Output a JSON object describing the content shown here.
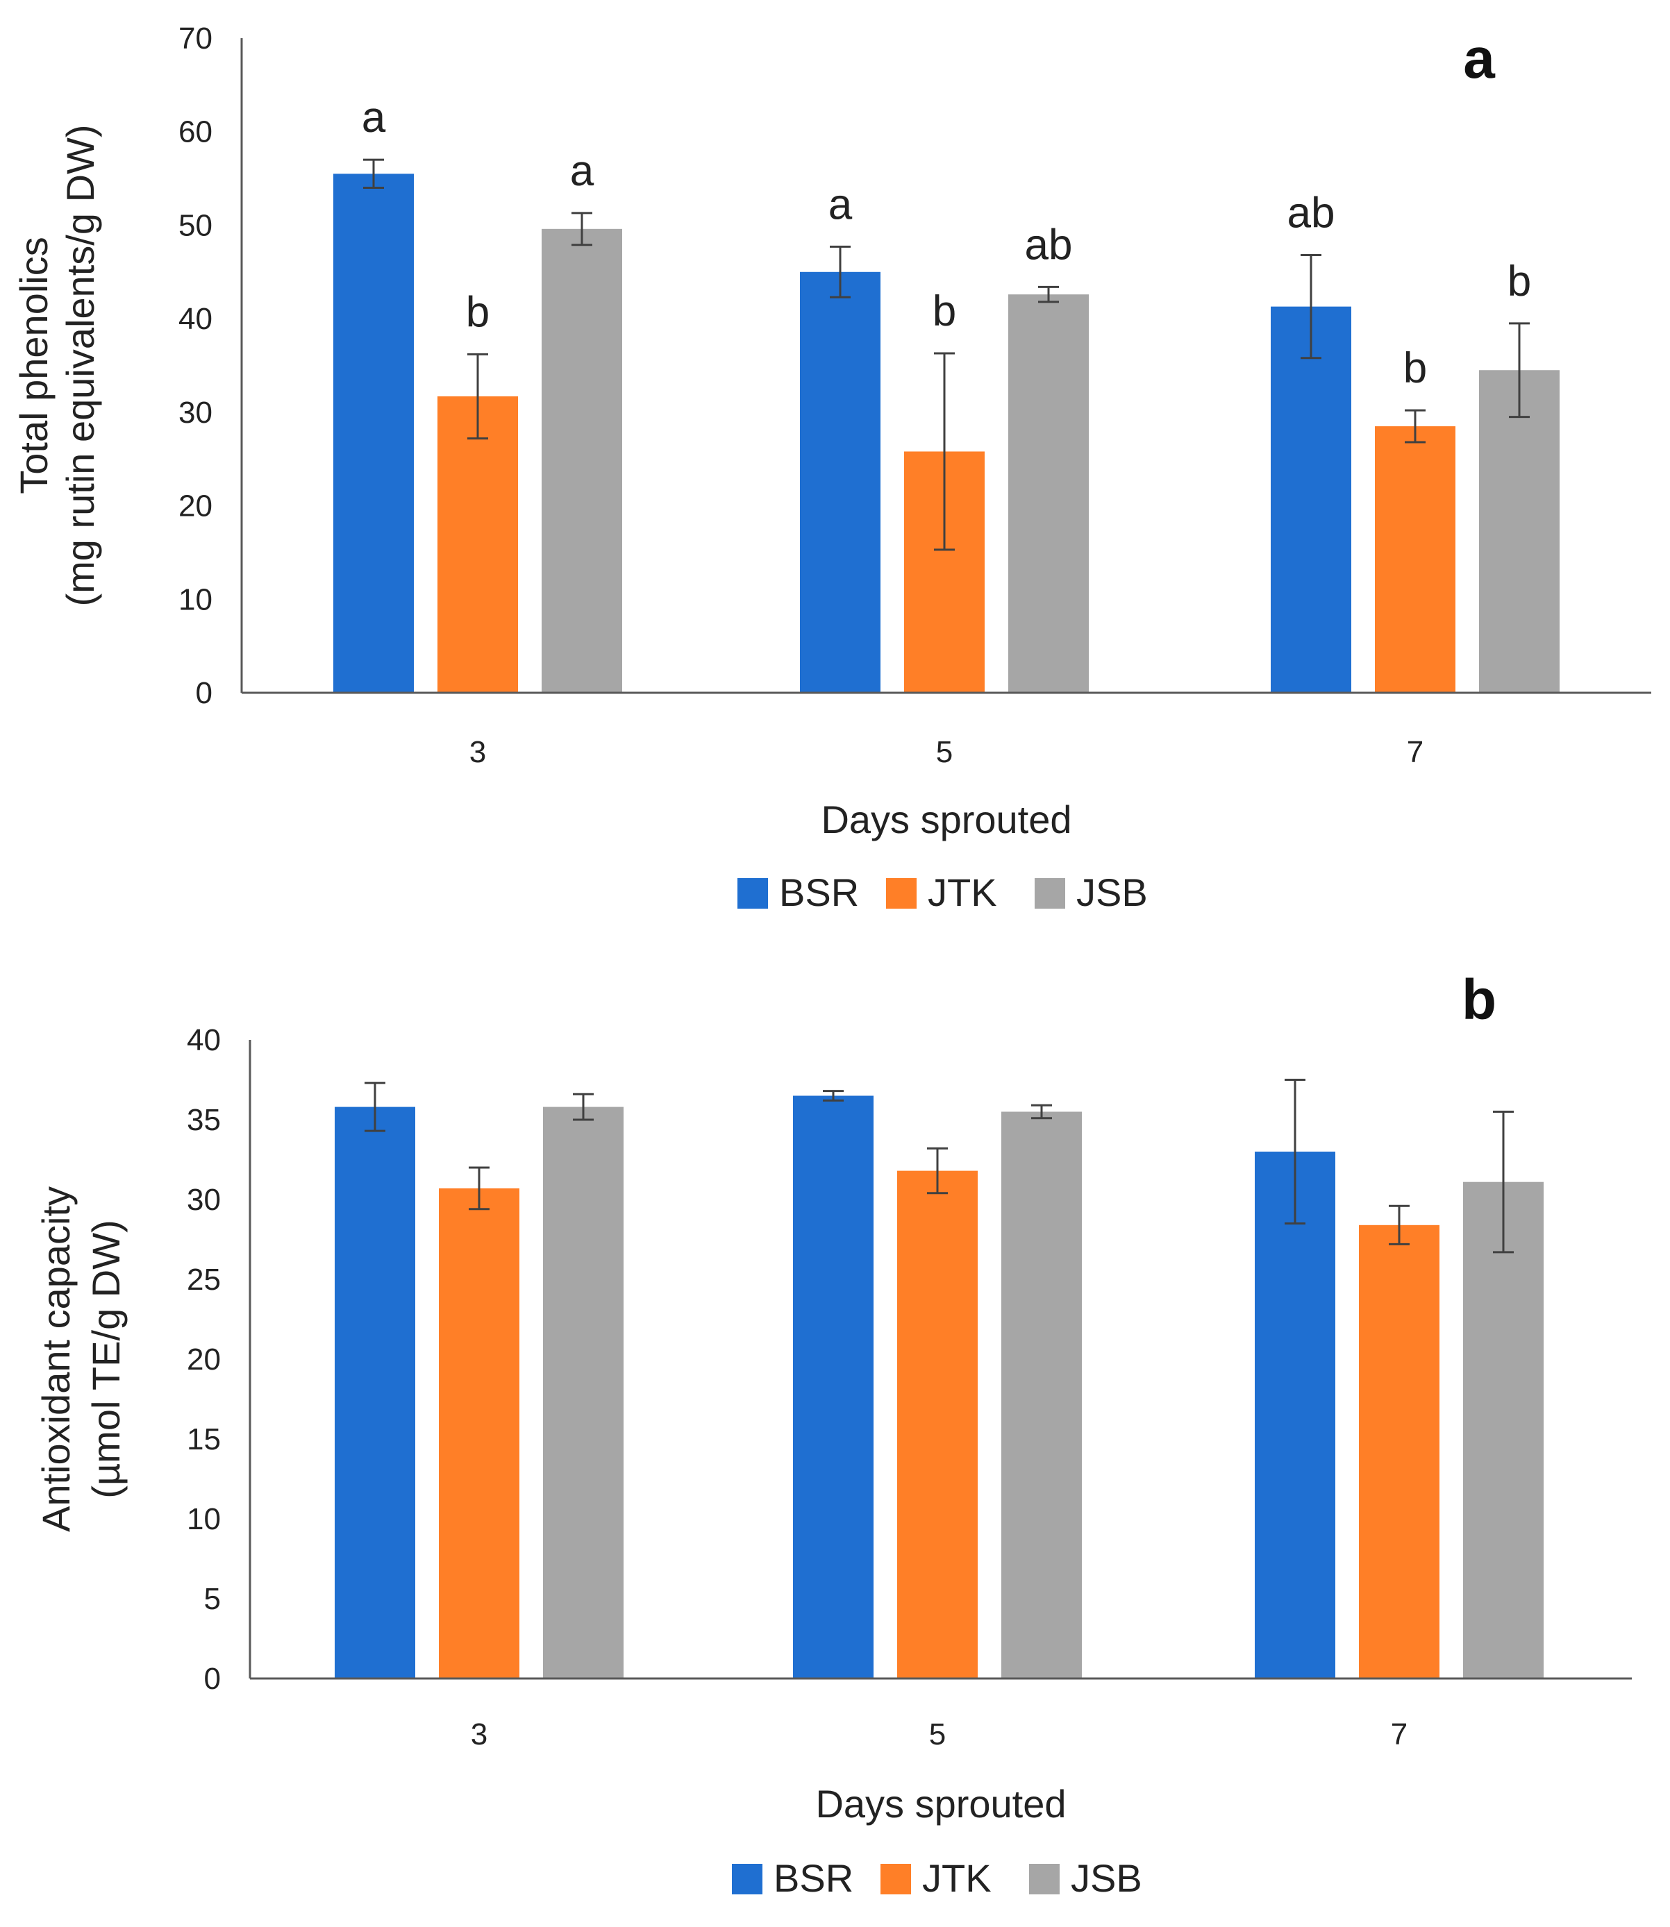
{
  "chart_data": [
    {
      "type": "bar",
      "panel_label": "a",
      "categories": [
        "3",
        "5",
        "7"
      ],
      "series": [
        {
          "name": "BSR",
          "color": "#1F6FD1",
          "values": [
            55.5,
            45,
            41.3
          ],
          "errors": [
            1.5,
            2.7,
            5.5
          ],
          "letters": [
            "a",
            "a",
            "ab"
          ]
        },
        {
          "name": "JTK",
          "color": "#FF7F27",
          "values": [
            31.7,
            25.8,
            28.5
          ],
          "errors": [
            4.5,
            10.5,
            1.7
          ],
          "letters": [
            "b",
            "b",
            "b"
          ]
        },
        {
          "name": "JSB",
          "color": "#A6A6A6",
          "values": [
            49.6,
            42.6,
            34.5
          ],
          "errors": [
            1.7,
            0.8,
            5
          ],
          "letters": [
            "a",
            "ab",
            "b"
          ]
        }
      ],
      "xlabel": "Days sprouted",
      "ylabel_line1": "Total phenolics",
      "ylabel_line2": "(mg rutin equivalents/g DW)",
      "ylim": [
        0,
        70
      ],
      "yticks": [
        0,
        10,
        20,
        30,
        40,
        50,
        60,
        70
      ],
      "legend_position": "bottom-center"
    },
    {
      "type": "bar",
      "panel_label": "b",
      "categories": [
        "3",
        "5",
        "7"
      ],
      "series": [
        {
          "name": "BSR",
          "color": "#1F6FD1",
          "values": [
            35.8,
            36.5,
            33
          ],
          "errors": [
            1.5,
            0.3,
            4.5
          ]
        },
        {
          "name": "JTK",
          "color": "#FF7F27",
          "values": [
            30.7,
            31.8,
            28.4
          ],
          "errors": [
            1.3,
            1.4,
            1.2
          ]
        },
        {
          "name": "JSB",
          "color": "#A6A6A6",
          "values": [
            35.8,
            35.5,
            31.1
          ],
          "errors": [
            0.8,
            0.4,
            4.4
          ]
        }
      ],
      "xlabel": "Days sprouted",
      "ylabel_line1": "Antioxidant capacity",
      "ylabel_line2": "(µmol TE/g DW)",
      "ylim": [
        0,
        40
      ],
      "yticks": [
        0,
        5,
        10,
        15,
        20,
        25,
        30,
        35,
        40
      ],
      "legend_position": "bottom-center"
    }
  ]
}
